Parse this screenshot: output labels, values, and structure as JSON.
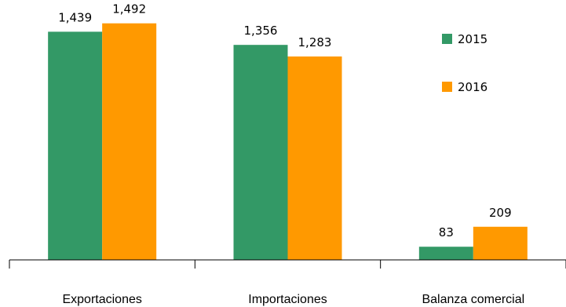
{
  "chart_data": {
    "type": "bar",
    "categories": [
      "Exportaciones",
      "Importaciones",
      "Balanza comercial"
    ],
    "series": [
      {
        "name": "2015",
        "values": [
          1439,
          1356,
          83
        ],
        "labels": [
          "1,439",
          "1,356",
          "83"
        ],
        "color": "#339966"
      },
      {
        "name": "2016",
        "values": [
          1492,
          1283,
          209
        ],
        "labels": [
          "1,492",
          "1,283",
          "209"
        ],
        "color": "#FF9900"
      }
    ],
    "ylim": [
      0,
      1550
    ],
    "grid": false,
    "legend_position": "top-right"
  }
}
